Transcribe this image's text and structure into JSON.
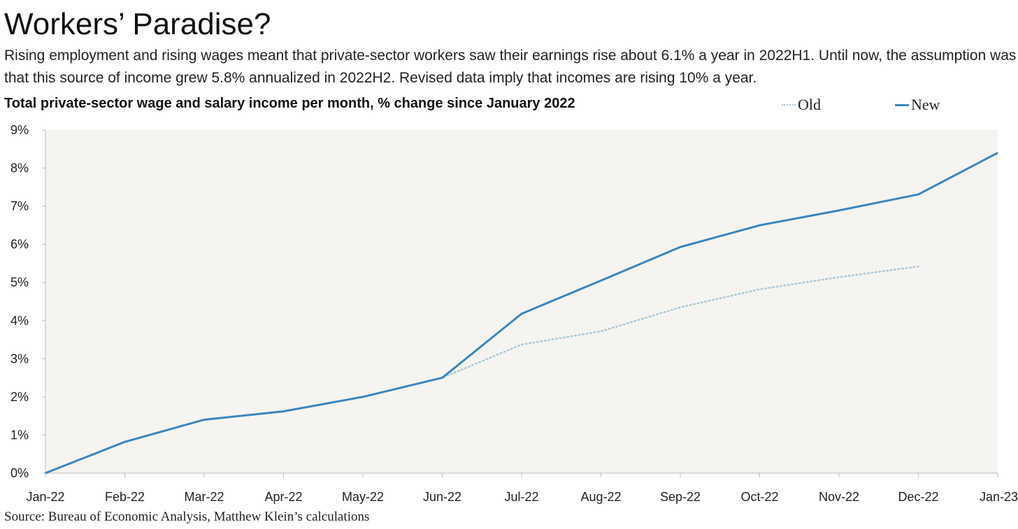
{
  "title": "Workers’ Paradise?",
  "subtitle": "Rising employment and rising wages meant that private-sector workers saw their earnings rise about 6.1% a year in 2022H1. Until now, the assumption was that this source of income grew 5.8% annualized in 2022H2. Revised data imply that incomes are rising 10% a year.",
  "source": "Source: Bureau of Economic Analysis, Matthew Klein’s calculations",
  "colors": {
    "plot_background": "#f5f4f0",
    "new_series": "#3a86bf",
    "old_series": "#a9c6da"
  },
  "chart_data": {
    "type": "line",
    "title": "Total private-sector wage and salary income per month, % change since January 2022",
    "x": [
      "Jan-22",
      "Feb-22",
      "Mar-22",
      "Apr-22",
      "May-22",
      "Jun-22",
      "Jul-22",
      "Aug-22",
      "Sep-22",
      "Oct-22",
      "Nov-22",
      "Dec-22",
      "Jan-23"
    ],
    "y_ticks": [
      "0%",
      "1%",
      "2%",
      "3%",
      "4%",
      "5%",
      "6%",
      "7%",
      "8%",
      "9%"
    ],
    "ylim": [
      0,
      9
    ],
    "y_unit": "%",
    "grid": false,
    "legend": "top-right",
    "series": [
      {
        "name": "Old",
        "style": "dotted",
        "color": "#a9c6da",
        "values": [
          0,
          0.82,
          1.4,
          1.62,
          2.0,
          2.5,
          3.37,
          3.72,
          4.35,
          4.82,
          5.14,
          5.42,
          null
        ]
      },
      {
        "name": "New",
        "style": "solid",
        "color": "#3a86bf",
        "values": [
          0,
          0.82,
          1.4,
          1.62,
          2.0,
          2.5,
          4.18,
          5.05,
          5.93,
          6.5,
          6.89,
          7.31,
          8.4
        ]
      }
    ]
  }
}
